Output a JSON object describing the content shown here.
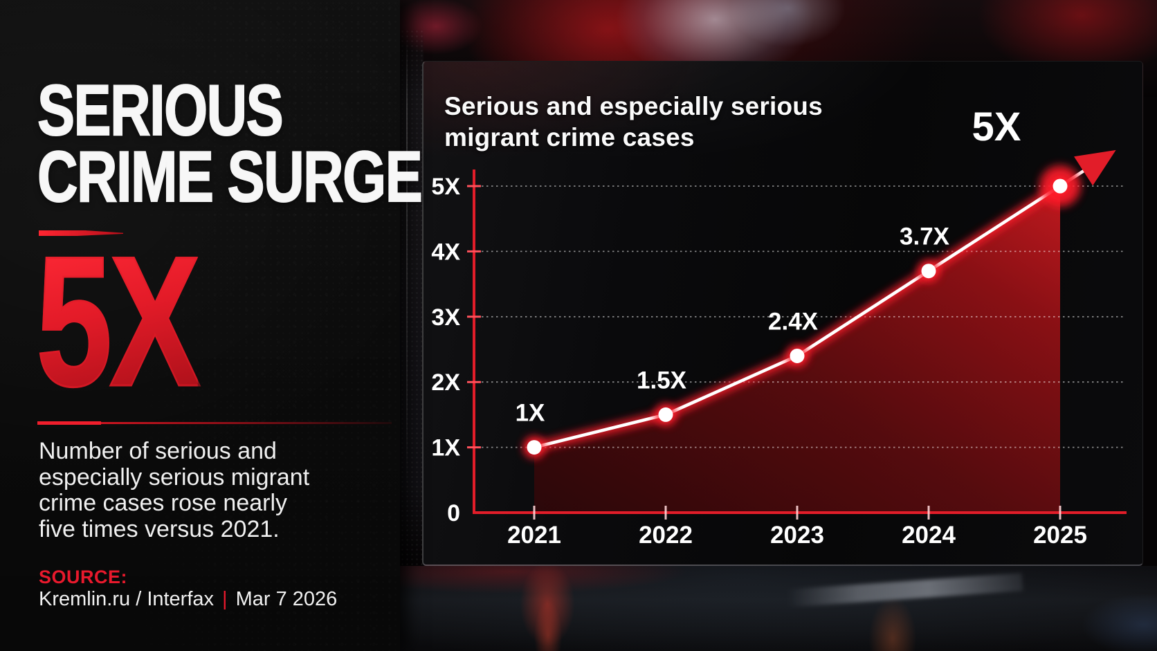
{
  "left_panel": {
    "title_line1": "SERIOUS",
    "title_line2": "CRIME SURGE",
    "big_stat": "5X",
    "description_lines": [
      "Number of serious and",
      "especially serious migrant",
      "crime cases rose nearly",
      "five times versus 2021."
    ],
    "source_label": "SOURCE:",
    "source_names": "Kremlin.ru / Interfax",
    "source_separator": "|",
    "source_date": "Mar 7 2026"
  },
  "chart_panel": {
    "title_line1": "Serious and especially serious",
    "title_line2": "migrant crime cases"
  },
  "chart_data": {
    "type": "line",
    "title": "Serious and especially serious migrant crime cases",
    "categories": [
      "2021",
      "2022",
      "2023",
      "2024",
      "2025"
    ],
    "values": [
      1,
      1.5,
      2.4,
      3.7,
      5
    ],
    "point_labels": [
      "1X",
      "1.5X",
      "2.4X",
      "3.7X",
      "5X"
    ],
    "y_ticks": [
      "0",
      "1X",
      "2X",
      "3X",
      "4X",
      "5X"
    ],
    "ylim": [
      0,
      5
    ],
    "xlabel": "",
    "ylabel": "",
    "grid": "dotted horizontal gridlines",
    "legend": "none",
    "annotations": "upward red arrow at final 2025 point; area under line filled red",
    "colors": {
      "line": "#ffffff",
      "glow": "#ff1d29",
      "axis": "#e21d29",
      "grid": "rgba(255,255,255,0.5)",
      "tick_y": "#ff525c",
      "tick_x": "#ffd4d6",
      "label": "#ffffff",
      "area_bright": "rgba(212,27,33,0.9)"
    }
  },
  "colors": {
    "accent_red": "#e8192c",
    "headline_white": "#f5f5f5",
    "panel_background": "#0c0c0c",
    "screen_background": "#0a0a0c"
  }
}
